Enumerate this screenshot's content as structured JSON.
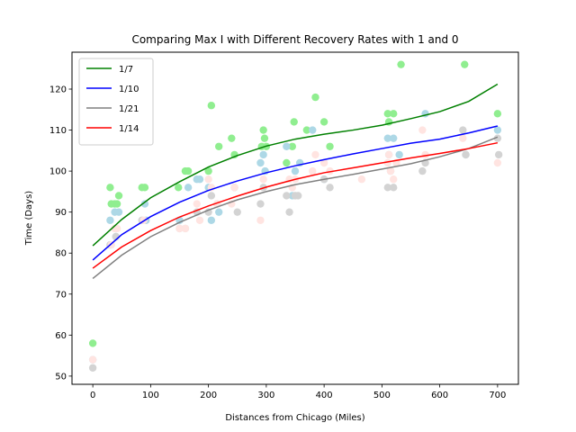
{
  "chart_data": {
    "type": "scatter",
    "title": "Comparing Max I with Different Recovery Rates with 1 and 0",
    "xlabel": "Distances from Chicago (Miles)",
    "ylabel": "Time (Days)",
    "xlim": [
      -36,
      736
    ],
    "ylim": [
      48,
      129
    ],
    "xticks": [
      0,
      100,
      200,
      300,
      400,
      500,
      600,
      700
    ],
    "yticks": [
      50,
      60,
      70,
      80,
      90,
      100,
      110,
      120
    ],
    "grid": false,
    "legend_position": "top-left",
    "series": [
      {
        "name": "1/7",
        "line_color": "#008000",
        "point_color": "#90ee90",
        "points": [
          [
            0,
            58
          ],
          [
            30,
            96
          ],
          [
            32,
            92
          ],
          [
            38,
            92
          ],
          [
            42,
            92
          ],
          [
            45,
            94
          ],
          [
            85,
            96
          ],
          [
            90,
            96
          ],
          [
            148,
            96
          ],
          [
            160,
            100
          ],
          [
            165,
            100
          ],
          [
            200,
            100
          ],
          [
            205,
            116
          ],
          [
            218,
            106
          ],
          [
            240,
            108
          ],
          [
            245,
            104
          ],
          [
            292,
            106
          ],
          [
            295,
            110
          ],
          [
            297,
            108
          ],
          [
            300,
            106
          ],
          [
            335,
            102
          ],
          [
            345,
            106
          ],
          [
            348,
            112
          ],
          [
            370,
            110
          ],
          [
            385,
            118
          ],
          [
            400,
            112
          ],
          [
            410,
            106
          ],
          [
            510,
            114
          ],
          [
            512,
            112
          ],
          [
            520,
            114
          ],
          [
            533,
            126
          ],
          [
            643,
            126
          ],
          [
            700,
            114
          ]
        ],
        "curve": [
          [
            0,
            81.8
          ],
          [
            50,
            88.2
          ],
          [
            100,
            93.5
          ],
          [
            150,
            97.4
          ],
          [
            200,
            101
          ],
          [
            250,
            103.8
          ],
          [
            300,
            106.1
          ],
          [
            350,
            107.8
          ],
          [
            400,
            109
          ],
          [
            450,
            110
          ],
          [
            500,
            111.2
          ],
          [
            550,
            112.8
          ],
          [
            600,
            114.5
          ],
          [
            650,
            117
          ],
          [
            700,
            121.2
          ]
        ]
      },
      {
        "name": "1/10",
        "line_color": "#0000ff",
        "point_color": "#add8e6",
        "points": [
          [
            0,
            54
          ],
          [
            30,
            88
          ],
          [
            38,
            90
          ],
          [
            45,
            90
          ],
          [
            40,
            84
          ],
          [
            90,
            92
          ],
          [
            92,
            88
          ],
          [
            150,
            88
          ],
          [
            165,
            96
          ],
          [
            180,
            98
          ],
          [
            185,
            98
          ],
          [
            200,
            96
          ],
          [
            205,
            88
          ],
          [
            218,
            90
          ],
          [
            245,
            96
          ],
          [
            290,
            102
          ],
          [
            295,
            104
          ],
          [
            298,
            100
          ],
          [
            335,
            106
          ],
          [
            345,
            94
          ],
          [
            350,
            100
          ],
          [
            358,
            102
          ],
          [
            380,
            110
          ],
          [
            400,
            98
          ],
          [
            510,
            108
          ],
          [
            512,
            104
          ],
          [
            520,
            108
          ],
          [
            530,
            104
          ],
          [
            575,
            114
          ],
          [
            645,
            104
          ],
          [
            700,
            110
          ]
        ],
        "curve": [
          [
            0,
            78.3
          ],
          [
            50,
            84.5
          ],
          [
            100,
            88.9
          ],
          [
            150,
            92.4
          ],
          [
            200,
            95.3
          ],
          [
            250,
            97.6
          ],
          [
            300,
            99.6
          ],
          [
            350,
            101.3
          ],
          [
            400,
            102.8
          ],
          [
            450,
            104.2
          ],
          [
            500,
            105.5
          ],
          [
            550,
            106.8
          ],
          [
            600,
            107.8
          ],
          [
            650,
            109.3
          ],
          [
            700,
            111
          ]
        ]
      },
      {
        "name": "1/21",
        "line_color": "#808080",
        "point_color": "#d3d3d3",
        "points": [
          [
            0,
            52
          ],
          [
            30,
            82
          ],
          [
            40,
            84
          ],
          [
            85,
            88
          ],
          [
            150,
            86
          ],
          [
            160,
            86
          ],
          [
            180,
            90
          ],
          [
            200,
            90
          ],
          [
            205,
            94
          ],
          [
            215,
            92
          ],
          [
            245,
            96
          ],
          [
            250,
            90
          ],
          [
            290,
            92
          ],
          [
            295,
            96
          ],
          [
            335,
            94
          ],
          [
            340,
            90
          ],
          [
            350,
            94
          ],
          [
            355,
            94
          ],
          [
            400,
            98
          ],
          [
            410,
            96
          ],
          [
            510,
            96
          ],
          [
            515,
            100
          ],
          [
            520,
            96
          ],
          [
            570,
            100
          ],
          [
            575,
            102
          ],
          [
            640,
            110
          ],
          [
            645,
            104
          ],
          [
            700,
            108
          ],
          [
            702,
            104
          ]
        ],
        "curve": [
          [
            0,
            73.8
          ],
          [
            50,
            79.5
          ],
          [
            100,
            84
          ],
          [
            150,
            87.5
          ],
          [
            200,
            90.5
          ],
          [
            250,
            93
          ],
          [
            300,
            95
          ],
          [
            350,
            96.7
          ],
          [
            400,
            98
          ],
          [
            450,
            99.2
          ],
          [
            500,
            100.5
          ],
          [
            550,
            101.8
          ],
          [
            600,
            103.5
          ],
          [
            650,
            105.5
          ],
          [
            700,
            108.3
          ]
        ]
      },
      {
        "name": "1/14",
        "line_color": "#ff0000",
        "point_color": "#ffe4e1",
        "points": [
          [
            0,
            54
          ],
          [
            32,
            82
          ],
          [
            38,
            86
          ],
          [
            42,
            86
          ],
          [
            88,
            88
          ],
          [
            150,
            86
          ],
          [
            160,
            86
          ],
          [
            180,
            92
          ],
          [
            185,
            88
          ],
          [
            200,
            98
          ],
          [
            205,
            96
          ],
          [
            215,
            92
          ],
          [
            240,
            92
          ],
          [
            245,
            96
          ],
          [
            290,
            88
          ],
          [
            295,
            98
          ],
          [
            340,
            98
          ],
          [
            345,
            96
          ],
          [
            350,
            98
          ],
          [
            380,
            100
          ],
          [
            385,
            104
          ],
          [
            400,
            102
          ],
          [
            410,
            100
          ],
          [
            465,
            98
          ],
          [
            510,
            102
          ],
          [
            512,
            104
          ],
          [
            515,
            100
          ],
          [
            520,
            98
          ],
          [
            525,
            102
          ],
          [
            570,
            110
          ],
          [
            575,
            104
          ],
          [
            640,
            108
          ],
          [
            700,
            102
          ]
        ],
        "curve": [
          [
            0,
            76.3
          ],
          [
            50,
            81.5
          ],
          [
            100,
            85.5
          ],
          [
            150,
            88.8
          ],
          [
            200,
            91.5
          ],
          [
            250,
            93.9
          ],
          [
            300,
            96.1
          ],
          [
            350,
            98
          ],
          [
            400,
            99.6
          ],
          [
            450,
            100.8
          ],
          [
            500,
            102
          ],
          [
            550,
            103.2
          ],
          [
            600,
            104.3
          ],
          [
            650,
            105.5
          ],
          [
            700,
            106.9
          ]
        ]
      }
    ]
  }
}
